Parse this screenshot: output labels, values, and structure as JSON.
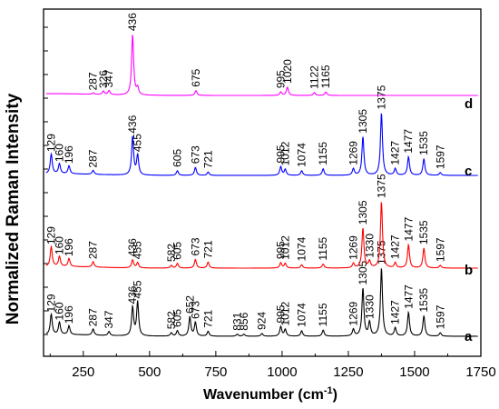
{
  "chart_data": {
    "type": "line",
    "title": "",
    "xlabel": "Wavenumber (cm",
    "xlabel_sup": "-1",
    "xlabel_suffix": ")",
    "ylabel": "Normalized Raman Intensity",
    "xlim": [
      100,
      1750
    ],
    "x_ticks": [
      250,
      500,
      750,
      1000,
      1250,
      1500,
      1750
    ],
    "grid": false,
    "series": [
      {
        "name": "a",
        "color": "#000000",
        "offset": 0,
        "peaks": [
          {
            "x": 129,
            "h": 0.3
          },
          {
            "x": 160,
            "h": 0.18
          },
          {
            "x": 196,
            "h": 0.13
          },
          {
            "x": 287,
            "h": 0.09
          },
          {
            "x": 347,
            "h": 0.06
          },
          {
            "x": 436,
            "h": 0.42
          },
          {
            "x": 455,
            "h": 0.5
          },
          {
            "x": 582,
            "h": 0.05
          },
          {
            "x": 605,
            "h": 0.08
          },
          {
            "x": 652,
            "h": 0.28
          },
          {
            "x": 673,
            "h": 0.2
          },
          {
            "x": 721,
            "h": 0.07
          },
          {
            "x": 831,
            "h": 0.03
          },
          {
            "x": 856,
            "h": 0.03
          },
          {
            "x": 924,
            "h": 0.04
          },
          {
            "x": 995,
            "h": 0.14
          },
          {
            "x": 1012,
            "h": 0.1
          },
          {
            "x": 1074,
            "h": 0.08
          },
          {
            "x": 1155,
            "h": 0.09
          },
          {
            "x": 1269,
            "h": 0.1
          },
          {
            "x": 1305,
            "h": 0.7
          },
          {
            "x": 1330,
            "h": 0.2
          },
          {
            "x": 1375,
            "h": 1.0
          },
          {
            "x": 1427,
            "h": 0.12
          },
          {
            "x": 1477,
            "h": 0.35
          },
          {
            "x": 1535,
            "h": 0.3
          },
          {
            "x": 1597,
            "h": 0.05
          }
        ],
        "peak_labels": [
          "129",
          "160",
          "196",
          "287",
          "347",
          "436",
          "455",
          "582",
          "605",
          "652",
          "673",
          "721",
          "831",
          "856",
          "924",
          "995",
          "1012",
          "1074",
          "1155",
          "1269",
          "1305",
          "1330",
          "1375",
          "1427",
          "1477",
          "1535",
          "1597"
        ]
      },
      {
        "name": "b",
        "color": "#ff0000",
        "offset": 1,
        "peaks": [
          {
            "x": 129,
            "h": 0.3
          },
          {
            "x": 160,
            "h": 0.15
          },
          {
            "x": 196,
            "h": 0.12
          },
          {
            "x": 287,
            "h": 0.08
          },
          {
            "x": 436,
            "h": 0.12
          },
          {
            "x": 455,
            "h": 0.08
          },
          {
            "x": 582,
            "h": 0.04
          },
          {
            "x": 605,
            "h": 0.07
          },
          {
            "x": 673,
            "h": 0.13
          },
          {
            "x": 721,
            "h": 0.09
          },
          {
            "x": 995,
            "h": 0.08
          },
          {
            "x": 1012,
            "h": 0.07
          },
          {
            "x": 1074,
            "h": 0.05
          },
          {
            "x": 1155,
            "h": 0.06
          },
          {
            "x": 1269,
            "h": 0.07
          },
          {
            "x": 1305,
            "h": 0.6
          },
          {
            "x": 1330,
            "h": 0.1
          },
          {
            "x": 1375,
            "h": 1.0
          },
          {
            "x": 1427,
            "h": 0.08
          },
          {
            "x": 1477,
            "h": 0.35
          },
          {
            "x": 1535,
            "h": 0.3
          },
          {
            "x": 1597,
            "h": 0.04
          }
        ],
        "peak_labels": [
          "129",
          "160",
          "196",
          "287",
          "436",
          "455",
          "582",
          "605",
          "673",
          "721",
          "995",
          "1012",
          "1074",
          "1155",
          "1269",
          "1305",
          "1330",
          "1375",
          "1427",
          "1477",
          "1535",
          "1597"
        ]
      },
      {
        "name": "c",
        "color": "#0000ff",
        "offset": 2,
        "peaks": [
          {
            "x": 129,
            "h": 0.3
          },
          {
            "x": 160,
            "h": 0.15
          },
          {
            "x": 196,
            "h": 0.12
          },
          {
            "x": 287,
            "h": 0.06
          },
          {
            "x": 436,
            "h": 0.58
          },
          {
            "x": 455,
            "h": 0.3
          },
          {
            "x": 605,
            "h": 0.07
          },
          {
            "x": 673,
            "h": 0.12
          },
          {
            "x": 721,
            "h": 0.05
          },
          {
            "x": 995,
            "h": 0.13
          },
          {
            "x": 1012,
            "h": 0.09
          },
          {
            "x": 1074,
            "h": 0.07
          },
          {
            "x": 1155,
            "h": 0.1
          },
          {
            "x": 1269,
            "h": 0.1
          },
          {
            "x": 1305,
            "h": 0.58
          },
          {
            "x": 1375,
            "h": 0.94
          },
          {
            "x": 1427,
            "h": 0.1
          },
          {
            "x": 1477,
            "h": 0.28
          },
          {
            "x": 1535,
            "h": 0.25
          },
          {
            "x": 1597,
            "h": 0.04
          }
        ],
        "peak_labels": [
          "129",
          "160",
          "196",
          "287",
          "436",
          "455",
          "605",
          "673",
          "721",
          "995",
          "1012",
          "1074",
          "1155",
          "1269",
          "1305",
          "1375",
          "1427",
          "1477",
          "1535",
          "1597"
        ]
      },
      {
        "name": "d",
        "color": "#ff00ff",
        "offset": 3,
        "peaks": [
          {
            "x": 326,
            "h": 0.05
          },
          {
            "x": 347,
            "h": 0.06
          },
          {
            "x": 436,
            "h": 0.88
          },
          {
            "x": 455,
            "h": 0.1
          },
          {
            "x": 287,
            "h": 0.02
          },
          {
            "x": 675,
            "h": 0.07
          },
          {
            "x": 995,
            "h": 0.05
          },
          {
            "x": 1020,
            "h": 0.12
          },
          {
            "x": 1122,
            "h": 0.04
          },
          {
            "x": 1165,
            "h": 0.05
          }
        ],
        "peak_labels": [
          "326",
          "347",
          "436",
          "287",
          "675",
          "995",
          "1020",
          "1122",
          "1165"
        ]
      }
    ]
  }
}
